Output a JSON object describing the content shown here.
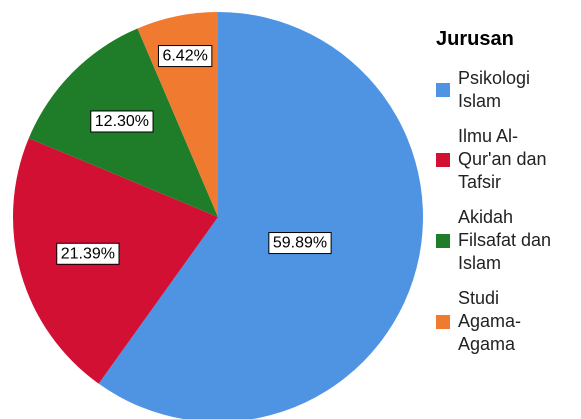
{
  "chart_data": {
    "type": "pie",
    "legend_title": "Jurusan",
    "categories": [
      "Psikologi Islam",
      "Ilmu Al-Qur'an dan Tafsir",
      "Akidah Filsafat dan Islam",
      "Studi Agama-Agama"
    ],
    "values": [
      59.89,
      21.39,
      12.3,
      6.42
    ],
    "value_labels": [
      "59.89%",
      "21.39%",
      "12.30%",
      "6.42%"
    ],
    "colors": [
      "#4f94e3",
      "#d21033",
      "#1f7d2a",
      "#f07a30"
    ],
    "legend": "right"
  }
}
